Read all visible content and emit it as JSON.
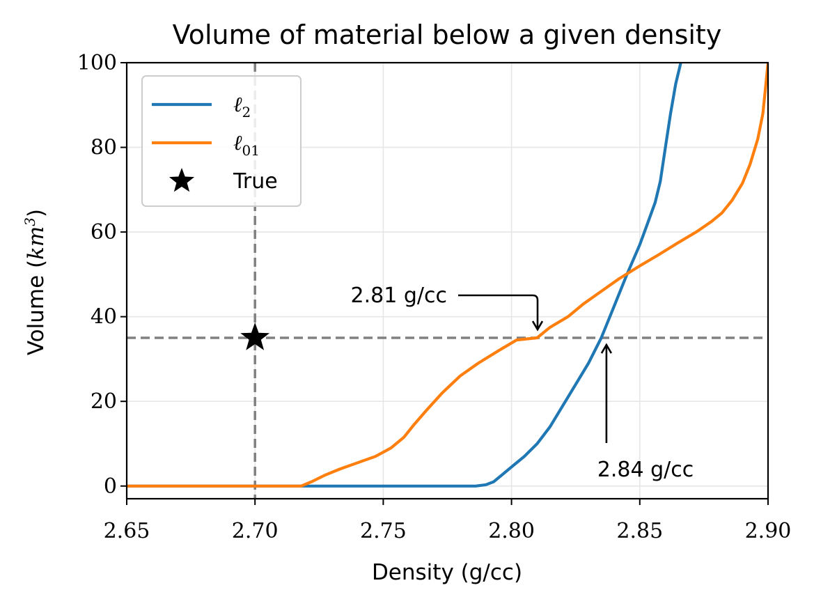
{
  "chart_data": {
    "type": "line",
    "title": "Volume of material below a given density",
    "xlabel": "Density (g/cc)",
    "ylabel_prefix": "Volume (",
    "ylabel_unit": "km",
    "ylabel_unit_exp": "3",
    "ylabel_suffix": ")",
    "xlim": [
      2.65,
      2.9
    ],
    "ylim": [
      -3,
      100
    ],
    "xticks": [
      2.65,
      2.7,
      2.75,
      2.8,
      2.85,
      2.9
    ],
    "xtick_labels": [
      "2.65",
      "2.70",
      "2.75",
      "2.80",
      "2.85",
      "2.90"
    ],
    "yticks": [
      0,
      20,
      40,
      60,
      80,
      100
    ],
    "ytick_labels": [
      "0",
      "20",
      "40",
      "60",
      "80",
      "100"
    ],
    "grid": true,
    "legend_position": "top-left",
    "series": [
      {
        "name": "ℓ",
        "name_sub": "2",
        "color": "#1f77b4",
        "x": [
          2.65,
          2.7,
          2.75,
          2.786,
          2.79,
          2.793,
          2.796,
          2.8,
          2.805,
          2.81,
          2.815,
          2.82,
          2.825,
          2.83,
          2.835,
          2.84,
          2.845,
          2.85,
          2.853,
          2.856,
          2.858,
          2.86,
          2.862,
          2.864,
          2.866
        ],
        "y": [
          0,
          0,
          0,
          0,
          0.3,
          1.0,
          2.5,
          4.5,
          7.0,
          10.0,
          14.0,
          19.0,
          24.0,
          29.0,
          35.0,
          42.5,
          50.0,
          57.0,
          62.0,
          67.0,
          72.0,
          80.0,
          88.0,
          95.0,
          100.0
        ]
      },
      {
        "name": "ℓ",
        "name_sub": "01",
        "color": "#ff7f0e",
        "x": [
          2.65,
          2.7,
          2.718,
          2.722,
          2.727,
          2.733,
          2.74,
          2.747,
          2.753,
          2.758,
          2.762,
          2.767,
          2.773,
          2.78,
          2.787,
          2.795,
          2.802,
          2.81,
          2.815,
          2.822,
          2.828,
          2.835,
          2.842,
          2.85,
          2.857,
          2.865,
          2.872,
          2.878,
          2.882,
          2.886,
          2.89,
          2.893,
          2.896,
          2.898,
          2.899,
          2.9
        ],
        "y": [
          0,
          0,
          0,
          1.0,
          2.5,
          4.0,
          5.5,
          7.0,
          9.0,
          11.5,
          14.5,
          18.0,
          22.0,
          26.0,
          29.0,
          32.0,
          34.5,
          35.0,
          37.5,
          40.0,
          43.0,
          46.0,
          49.0,
          52.0,
          54.5,
          57.5,
          60.0,
          62.5,
          64.5,
          67.5,
          71.5,
          76.0,
          82.0,
          88.0,
          94.0,
          100.0
        ]
      }
    ],
    "true_point": {
      "name": "True",
      "x": 2.7,
      "y": 35,
      "color": "#000000"
    },
    "reference_lines": {
      "x": 2.7,
      "y": 35,
      "color": "#808080"
    },
    "annotations": [
      {
        "text": "2.81 g/cc",
        "target_x": 2.81,
        "target_y": 35
      },
      {
        "text": "2.84 g/cc",
        "target_x": 2.837,
        "target_y": 35
      }
    ]
  }
}
